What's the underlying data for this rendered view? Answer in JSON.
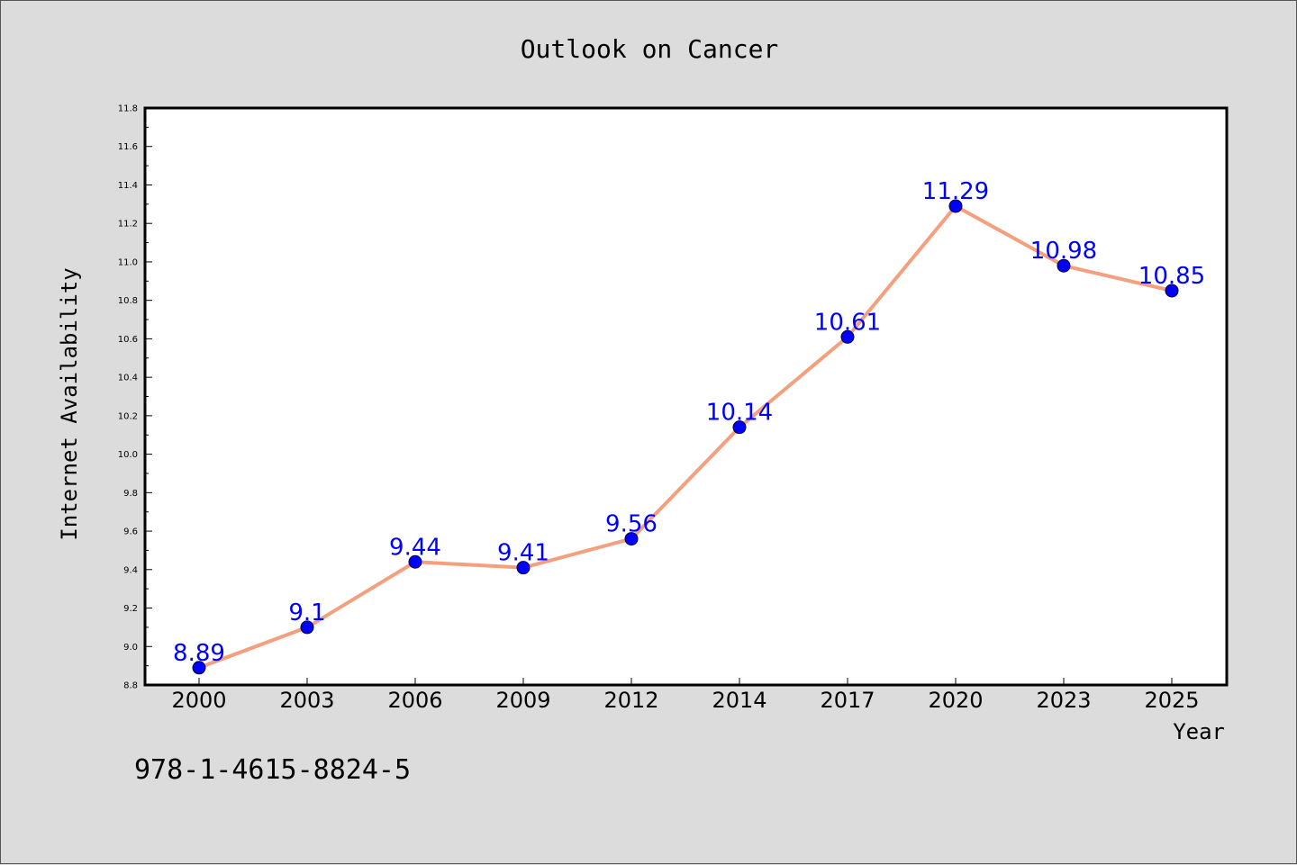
{
  "chart_data": {
    "type": "line",
    "title": "Outlook on Cancer",
    "xlabel": "Year",
    "ylabel": "Internet Availability",
    "categories": [
      "2000",
      "2003",
      "2006",
      "2009",
      "2012",
      "2014",
      "2017",
      "2020",
      "2023",
      "2025"
    ],
    "series": [
      {
        "values": [
          8.89,
          9.1,
          9.44,
          9.41,
          9.56,
          10.14,
          10.61,
          11.29,
          10.98,
          10.85
        ],
        "data_labels": [
          "8.89",
          "9.1",
          "9.44",
          "9.41",
          "9.56",
          "10.14",
          "10.61",
          "11.29",
          "10.98",
          "10.85"
        ],
        "line_color": "#f4a07e",
        "marker_color": "#0000ff"
      }
    ],
    "ylim": [
      8.8,
      11.8
    ],
    "yticks": [
      "8.8",
      "9.0",
      "9.2",
      "9.4",
      "9.6",
      "9.8",
      "10.0",
      "10.2",
      "10.4",
      "10.6",
      "10.8",
      "11.0",
      "11.2",
      "11.4",
      "11.6",
      "11.8"
    ],
    "grid": false,
    "legend": "none"
  },
  "footnote": "978-1-4615-8824-5",
  "colors": {
    "background": "#dcdcdc",
    "plot_background": "#ffffff",
    "line": "#f4a07e",
    "marker": "#0000ff",
    "data_label": "#0000ff"
  }
}
